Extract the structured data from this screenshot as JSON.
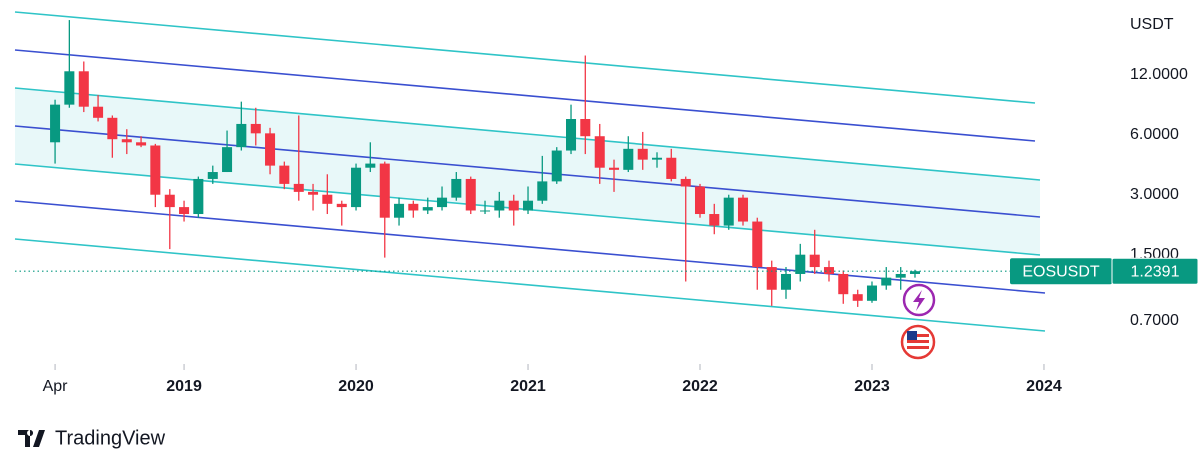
{
  "chart_data": {
    "type": "candlestick",
    "symbol": "EOSUSDT",
    "currency": "USDT",
    "brand": "TradingView",
    "log_scale": true,
    "up_color": "#089981",
    "down_color": "#f23645",
    "x": [
      2018.25,
      2018.333,
      2018.417,
      2018.5,
      2018.583,
      2018.667,
      2018.75,
      2018.833,
      2018.917,
      2019.0,
      2019.083,
      2019.167,
      2019.25,
      2019.333,
      2019.417,
      2019.5,
      2019.583,
      2019.667,
      2019.75,
      2019.833,
      2019.917,
      2020.0,
      2020.083,
      2020.167,
      2020.25,
      2020.333,
      2020.417,
      2020.5,
      2020.583,
      2020.667,
      2020.75,
      2020.833,
      2020.917,
      2021.0,
      2021.083,
      2021.167,
      2021.25,
      2021.333,
      2021.417,
      2021.5,
      2021.583,
      2021.667,
      2021.75,
      2021.833,
      2021.917,
      2022.0,
      2022.083,
      2022.167,
      2022.25,
      2022.333,
      2022.417,
      2022.5,
      2022.583,
      2022.667,
      2022.75,
      2022.833,
      2022.917,
      2023.0,
      2023.083,
      2023.167,
      2023.25
    ],
    "open": [
      5.5,
      8.5,
      12.5,
      8.3,
      7.3,
      5.7,
      5.5,
      5.3,
      3.0,
      2.6,
      2.4,
      3.6,
      3.9,
      5.2,
      6.8,
      6.1,
      4.2,
      3.4,
      3.1,
      3.0,
      2.7,
      2.6,
      4.1,
      4.3,
      2.3,
      2.7,
      2.5,
      2.6,
      2.9,
      3.6,
      2.5,
      2.5,
      2.8,
      2.5,
      2.8,
      3.5,
      5.0,
      7.2,
      5.9,
      4.1,
      4.0,
      5.1,
      4.5,
      4.6,
      3.6,
      3.3,
      2.4,
      2.1,
      2.9,
      2.2,
      1.3,
      1.0,
      1.2,
      1.5,
      1.3,
      1.2,
      0.95,
      0.88,
      1.05,
      1.15,
      1.2
    ],
    "high": [
      9,
      22.6,
      14,
      9.5,
      7.5,
      6.4,
      5.9,
      5.4,
      3.2,
      2.8,
      3.7,
      4.2,
      6.3,
      8.8,
      8.2,
      6.5,
      4.4,
      7.5,
      3.4,
      3.8,
      2.8,
      4.3,
      5.5,
      4.4,
      2.9,
      2.8,
      2.9,
      3.3,
      3.9,
      3.7,
      2.8,
      3.1,
      3.0,
      3.3,
      4.7,
      5.2,
      8.5,
      15,
      6.8,
      4.5,
      5.9,
      6.2,
      4.9,
      5.1,
      3.7,
      3.4,
      2.7,
      3.0,
      3.0,
      2.3,
      1.4,
      1.3,
      1.7,
      2.0,
      1.4,
      1.25,
      1.0,
      1.1,
      1.3,
      1.3,
      1.26
    ],
    "low": [
      4.3,
      8.2,
      7.8,
      7.0,
      4.6,
      4.8,
      5.2,
      2.6,
      1.6,
      2.2,
      2.3,
      3.4,
      3.9,
      5.0,
      5.3,
      3.8,
      3.2,
      2.8,
      2.5,
      2.4,
      2.1,
      2.5,
      3.9,
      1.45,
      2.1,
      2.3,
      2.4,
      2.5,
      2.8,
      2.4,
      2.4,
      2.3,
      2.1,
      2.4,
      2.7,
      3.4,
      4.8,
      4.8,
      3.4,
      3.1,
      3.9,
      4.0,
      4.1,
      3.5,
      1.1,
      2.3,
      1.9,
      2.0,
      2.1,
      1.0,
      0.83,
      0.9,
      1.1,
      1.2,
      1.1,
      0.85,
      0.82,
      0.86,
      1.0,
      1.0,
      1.15
    ],
    "close": [
      8.5,
      12.5,
      8.3,
      7.3,
      5.7,
      5.5,
      5.3,
      3.0,
      2.6,
      2.4,
      3.6,
      3.9,
      5.2,
      6.8,
      6.1,
      4.2,
      3.4,
      3.1,
      3.0,
      2.7,
      2.6,
      4.1,
      4.3,
      2.3,
      2.7,
      2.5,
      2.6,
      2.9,
      3.6,
      2.5,
      2.5,
      2.8,
      2.5,
      2.8,
      3.5,
      5.0,
      7.2,
      5.9,
      4.1,
      4.0,
      5.1,
      4.5,
      4.6,
      3.6,
      3.3,
      2.4,
      2.1,
      2.9,
      2.2,
      1.3,
      1.0,
      1.2,
      1.5,
      1.3,
      1.2,
      0.95,
      0.88,
      1.05,
      1.15,
      1.2,
      1.2391
    ],
    "last_price": 1.2391,
    "xlim": [
      2018.017,
      2024.413
    ],
    "xticks": [
      {
        "value": 2018.25,
        "label": "Apr"
      },
      2019,
      2020,
      2021,
      2022,
      2023,
      2024
    ],
    "ylim": [
      0.4,
      28.5
    ],
    "yticks": [
      {
        "value": 12,
        "label": "12.0000"
      },
      {
        "value": 6,
        "label": "6.0000"
      },
      {
        "value": 3,
        "label": "3.0000"
      },
      {
        "value": 1.5,
        "label": "1.5000"
      },
      {
        "value": 0.7,
        "label": "0.7000"
      }
    ]
  }
}
